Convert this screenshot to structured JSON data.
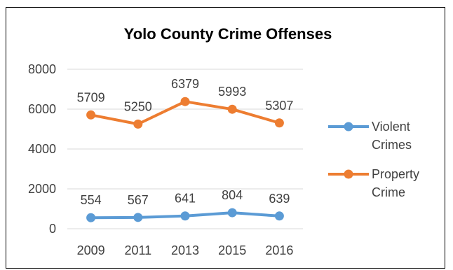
{
  "chart_data": {
    "type": "line",
    "title": "Yolo County Crime Offenses",
    "xlabel": "",
    "ylabel": "",
    "categories": [
      "2009",
      "2011",
      "2013",
      "2015",
      "2016"
    ],
    "ylim": [
      0,
      8000
    ],
    "yticks": [
      "0",
      "2000",
      "4000",
      "6000",
      "8000"
    ],
    "grid": true,
    "legend_position": "right",
    "series": [
      {
        "name": "Violent Crimes",
        "legend_lines": [
          "Violent",
          "Crimes"
        ],
        "values": [
          554,
          567,
          641,
          804,
          639
        ],
        "labels": [
          "554",
          "567",
          "641",
          "804",
          "639"
        ],
        "color": "#5B9BD5"
      },
      {
        "name": "Property Crime",
        "legend_lines": [
          "Property",
          "Crime"
        ],
        "values": [
          5709,
          5250,
          6379,
          5993,
          5307
        ],
        "labels": [
          "5709",
          "5250",
          "6379",
          "5993",
          "5307"
        ],
        "color": "#ED7D31"
      }
    ]
  }
}
